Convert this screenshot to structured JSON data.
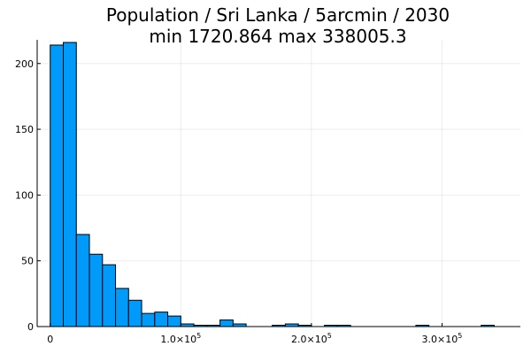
{
  "chart_data": {
    "type": "bar",
    "title": "Population / Sri Lanka / 5arcmin / 2030",
    "subtitle": "min 1720.864  max 338005.3",
    "xlabel": "",
    "ylabel": "",
    "bin_width": 10000,
    "bins_start": [
      0,
      10000,
      20000,
      30000,
      40000,
      50000,
      60000,
      70000,
      80000,
      90000,
      100000,
      110000,
      120000,
      130000,
      140000,
      150000,
      160000,
      170000,
      180000,
      190000,
      200000,
      210000,
      220000,
      230000,
      240000,
      250000,
      260000,
      270000,
      280000,
      290000,
      300000,
      310000,
      320000,
      330000
    ],
    "values": [
      214,
      216,
      70,
      55,
      47,
      29,
      20,
      10,
      11,
      8,
      2,
      1,
      1,
      5,
      2,
      0,
      0,
      1,
      2,
      1,
      0,
      1,
      1,
      0,
      0,
      0,
      0,
      0,
      1,
      0,
      0,
      0,
      0,
      1
    ],
    "xlim": [
      -10000,
      360000
    ],
    "ylim": [
      0,
      218
    ],
    "x_ticks": [
      {
        "value": 0,
        "mantissa": "0",
        "exponent": ""
      },
      {
        "value": 100000,
        "mantissa": "1.0×10",
        "exponent": "5"
      },
      {
        "value": 200000,
        "mantissa": "2.0×10",
        "exponent": "5"
      },
      {
        "value": 300000,
        "mantissa": "3.0×10",
        "exponent": "5"
      }
    ],
    "y_ticks": [
      0,
      50,
      100,
      150,
      200
    ],
    "grid": true,
    "legend": "none",
    "bar_color": "#009AFA"
  }
}
